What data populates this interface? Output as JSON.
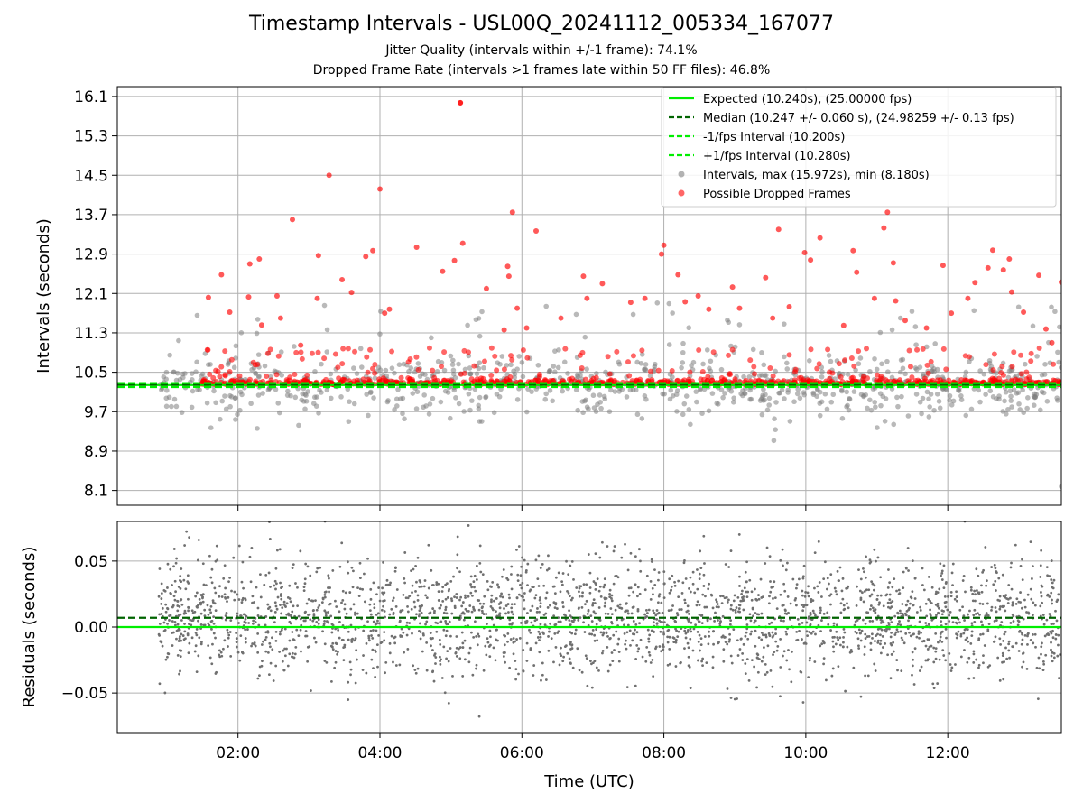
{
  "figure": {
    "title": "Timestamp Intervals - USL00Q_20241112_005334_167077",
    "subtitle_1": "Jitter Quality (intervals within +/-1 frame): 74.1%",
    "subtitle_2": "Dropped Frame Rate (intervals >1 frames late within 50 FF files): 46.8%"
  },
  "chart_data": [
    {
      "type": "scatter",
      "panel": "top",
      "ylabel": "Intervals (seconds)",
      "ylim": [
        7.8,
        16.3
      ],
      "xlim": [
        "00:18",
        "13:36"
      ],
      "yticks": [
        8.1,
        8.9,
        9.7,
        10.5,
        11.3,
        12.1,
        12.9,
        13.7,
        14.5,
        15.3,
        16.1
      ],
      "ytick_labels": [
        "8.1",
        "8.9",
        "9.7",
        "10.5",
        "11.3",
        "12.1",
        "12.9",
        "13.7",
        "14.5",
        "15.3",
        "16.1"
      ],
      "xticks": [
        "02:00",
        "04:00",
        "06:00",
        "08:00",
        "10:00",
        "12:00"
      ],
      "grid": true,
      "legend_position": "top-right",
      "reference_lines": [
        {
          "label": "Expected (10.240s), (25.00000 fps)",
          "y": 10.24,
          "color": "#00ee00",
          "style": "solid"
        },
        {
          "label": "Median (10.247 +/- 0.060 s), (24.98259 +/- 0.13 fps)",
          "y": 10.247,
          "color": "#006400",
          "style": "dashed"
        },
        {
          "label": "-1/fps Interval (10.200s)",
          "y": 10.2,
          "color": "#00ee00",
          "style": "dashed"
        },
        {
          "label": "+1/fps Interval (10.280s)",
          "y": 10.28,
          "color": "#00ee00",
          "style": "dashed"
        }
      ],
      "series": [
        {
          "name": "Intervals, max (15.972s), min (8.180s)",
          "color": "#808080",
          "max": 15.972,
          "min": 8.18,
          "max_x": "05:08",
          "min_x": "13:36"
        },
        {
          "name": "Possible Dropped Frames",
          "color": "#ff0000",
          "outliers": [
            {
              "x": "01:35",
              "y": 12.02
            },
            {
              "x": "01:46",
              "y": 12.48
            },
            {
              "x": "01:53",
              "y": 11.72
            },
            {
              "x": "02:09",
              "y": 12.03
            },
            {
              "x": "02:10",
              "y": 12.7
            },
            {
              "x": "02:18",
              "y": 12.8
            },
            {
              "x": "02:20",
              "y": 11.46
            },
            {
              "x": "02:33",
              "y": 12.05
            },
            {
              "x": "02:36",
              "y": 11.6
            },
            {
              "x": "02:46",
              "y": 13.6
            },
            {
              "x": "02:53",
              "y": 11.05
            },
            {
              "x": "03:07",
              "y": 12.0
            },
            {
              "x": "03:08",
              "y": 12.87
            },
            {
              "x": "03:17",
              "y": 14.5
            },
            {
              "x": "03:28",
              "y": 12.38
            },
            {
              "x": "03:36",
              "y": 12.12
            },
            {
              "x": "03:48",
              "y": 12.85
            },
            {
              "x": "03:54",
              "y": 12.97
            },
            {
              "x": "04:00",
              "y": 14.22
            },
            {
              "x": "04:04",
              "y": 11.7
            },
            {
              "x": "04:08",
              "y": 11.78
            },
            {
              "x": "04:31",
              "y": 13.04
            },
            {
              "x": "04:53",
              "y": 12.55
            },
            {
              "x": "05:03",
              "y": 12.77
            },
            {
              "x": "05:08",
              "y": 15.97
            },
            {
              "x": "05:10",
              "y": 13.12
            },
            {
              "x": "05:30",
              "y": 12.2
            },
            {
              "x": "05:45",
              "y": 11.36
            },
            {
              "x": "05:48",
              "y": 12.65
            },
            {
              "x": "05:49",
              "y": 12.45
            },
            {
              "x": "05:52",
              "y": 13.75
            },
            {
              "x": "05:56",
              "y": 11.8
            },
            {
              "x": "06:04",
              "y": 11.4
            },
            {
              "x": "06:12",
              "y": 13.37
            },
            {
              "x": "06:33",
              "y": 11.6
            },
            {
              "x": "06:52",
              "y": 12.45
            },
            {
              "x": "06:55",
              "y": 12.0
            },
            {
              "x": "07:08",
              "y": 12.3
            },
            {
              "x": "07:32",
              "y": 11.92
            },
            {
              "x": "07:44",
              "y": 12.0
            },
            {
              "x": "07:58",
              "y": 12.9
            },
            {
              "x": "08:00",
              "y": 13.08
            },
            {
              "x": "08:12",
              "y": 12.48
            },
            {
              "x": "08:18",
              "y": 11.93
            },
            {
              "x": "08:29",
              "y": 12.05
            },
            {
              "x": "08:38",
              "y": 11.78
            },
            {
              "x": "08:58",
              "y": 12.23
            },
            {
              "x": "09:04",
              "y": 11.8
            },
            {
              "x": "09:26",
              "y": 12.42
            },
            {
              "x": "09:32",
              "y": 11.6
            },
            {
              "x": "09:37",
              "y": 13.4
            },
            {
              "x": "09:46",
              "y": 11.83
            },
            {
              "x": "09:59",
              "y": 12.93
            },
            {
              "x": "10:04",
              "y": 12.78
            },
            {
              "x": "10:12",
              "y": 13.23
            },
            {
              "x": "10:32",
              "y": 11.45
            },
            {
              "x": "10:40",
              "y": 12.97
            },
            {
              "x": "10:43",
              "y": 12.53
            },
            {
              "x": "10:58",
              "y": 12.0
            },
            {
              "x": "11:06",
              "y": 13.43
            },
            {
              "x": "11:09",
              "y": 13.75
            },
            {
              "x": "11:14",
              "y": 12.72
            },
            {
              "x": "11:16",
              "y": 11.95
            },
            {
              "x": "11:24",
              "y": 11.55
            },
            {
              "x": "11:42",
              "y": 11.4
            },
            {
              "x": "11:56",
              "y": 12.67
            },
            {
              "x": "12:03",
              "y": 11.7
            },
            {
              "x": "12:17",
              "y": 12.0
            },
            {
              "x": "12:23",
              "y": 12.32
            },
            {
              "x": "12:34",
              "y": 12.62
            },
            {
              "x": "12:38",
              "y": 12.98
            },
            {
              "x": "12:47",
              "y": 12.58
            },
            {
              "x": "12:52",
              "y": 12.8
            },
            {
              "x": "12:54",
              "y": 12.13
            },
            {
              "x": "13:04",
              "y": 11.72
            },
            {
              "x": "13:17",
              "y": 12.47
            },
            {
              "x": "13:23",
              "y": 11.38
            },
            {
              "x": "13:28",
              "y": 11.1
            },
            {
              "x": "13:36",
              "y": 12.33
            }
          ]
        }
      ]
    },
    {
      "type": "scatter",
      "panel": "bottom",
      "ylabel": "Residuals (seconds)",
      "xlabel": "Time (UTC)",
      "ylim": [
        -0.08,
        0.08
      ],
      "yticks": [
        -0.05,
        0.0,
        0.05
      ],
      "ytick_labels": [
        "−0.05",
        "0.00",
        "0.05"
      ],
      "xticks": [
        "02:00",
        "04:00",
        "06:00",
        "08:00",
        "10:00",
        "12:00"
      ],
      "grid": true,
      "reference_lines": [
        {
          "y": 0.0,
          "color": "#00ee00",
          "style": "solid"
        },
        {
          "y": 0.007,
          "color": "#006400",
          "style": "dashed"
        }
      ],
      "series": [
        {
          "color": "#707070",
          "spread": 0.03,
          "x_start": "00:53",
          "x_end": "13:36"
        }
      ]
    }
  ]
}
